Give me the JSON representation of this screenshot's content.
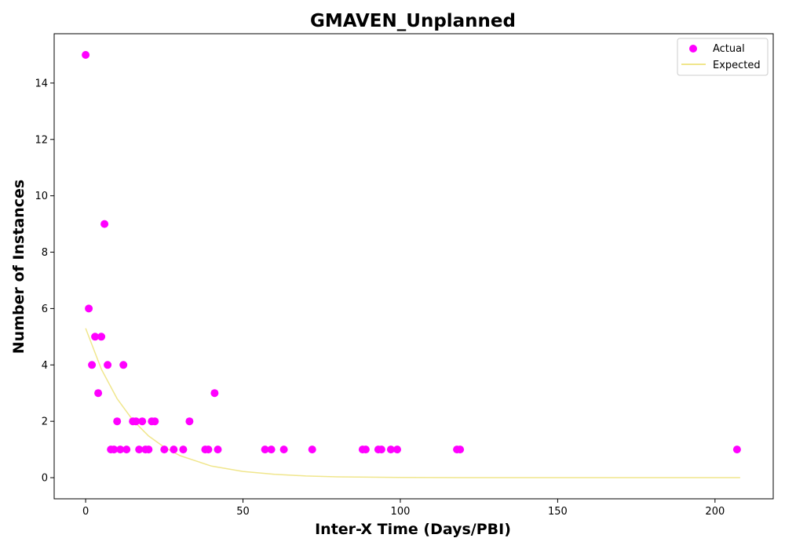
{
  "chart_data": {
    "type": "scatter",
    "title": "GMAVEN_Unplanned",
    "xlabel": "Inter-X Time (Days/PBI)",
    "ylabel": "Number of Instances",
    "xlim": [
      -10,
      218.5
    ],
    "ylim": [
      -0.75,
      15.75
    ],
    "xticks": [
      0,
      50,
      100,
      150,
      200
    ],
    "yticks": [
      0,
      2,
      4,
      6,
      8,
      10,
      12,
      14
    ],
    "grid": false,
    "legend": "top-right",
    "series": [
      {
        "name": "Actual",
        "kind": "scatter",
        "color": "#ff00ff",
        "x": [
          0,
          1,
          2,
          3,
          4,
          5,
          6,
          7,
          8,
          9,
          10,
          11,
          12,
          13,
          15,
          16,
          17,
          18,
          19,
          20,
          21,
          22,
          25,
          28,
          31,
          33,
          38,
          39,
          41,
          42,
          57,
          59,
          63,
          72,
          88,
          89,
          93,
          94,
          97,
          99,
          118,
          119,
          207
        ],
        "y": [
          15,
          6,
          4,
          5,
          3,
          5,
          9,
          4,
          1,
          1,
          2,
          1,
          4,
          1,
          2,
          2,
          1,
          2,
          1,
          1,
          2,
          2,
          1,
          1,
          1,
          2,
          1,
          1,
          3,
          1,
          1,
          1,
          1,
          1,
          1,
          1,
          1,
          1,
          1,
          1,
          1,
          1,
          1
        ]
      },
      {
        "name": "Expected",
        "kind": "line",
        "color": "#f0e68c",
        "x": [
          0,
          5,
          10,
          15,
          20,
          25,
          30,
          40,
          50,
          60,
          70,
          80,
          100,
          120,
          150,
          180,
          208
        ],
        "y": [
          5.3,
          3.85,
          2.8,
          2.04,
          1.48,
          1.08,
          0.78,
          0.41,
          0.22,
          0.12,
          0.06,
          0.03,
          0.01,
          0.0,
          0.0,
          0.0,
          0.0
        ]
      }
    ]
  }
}
